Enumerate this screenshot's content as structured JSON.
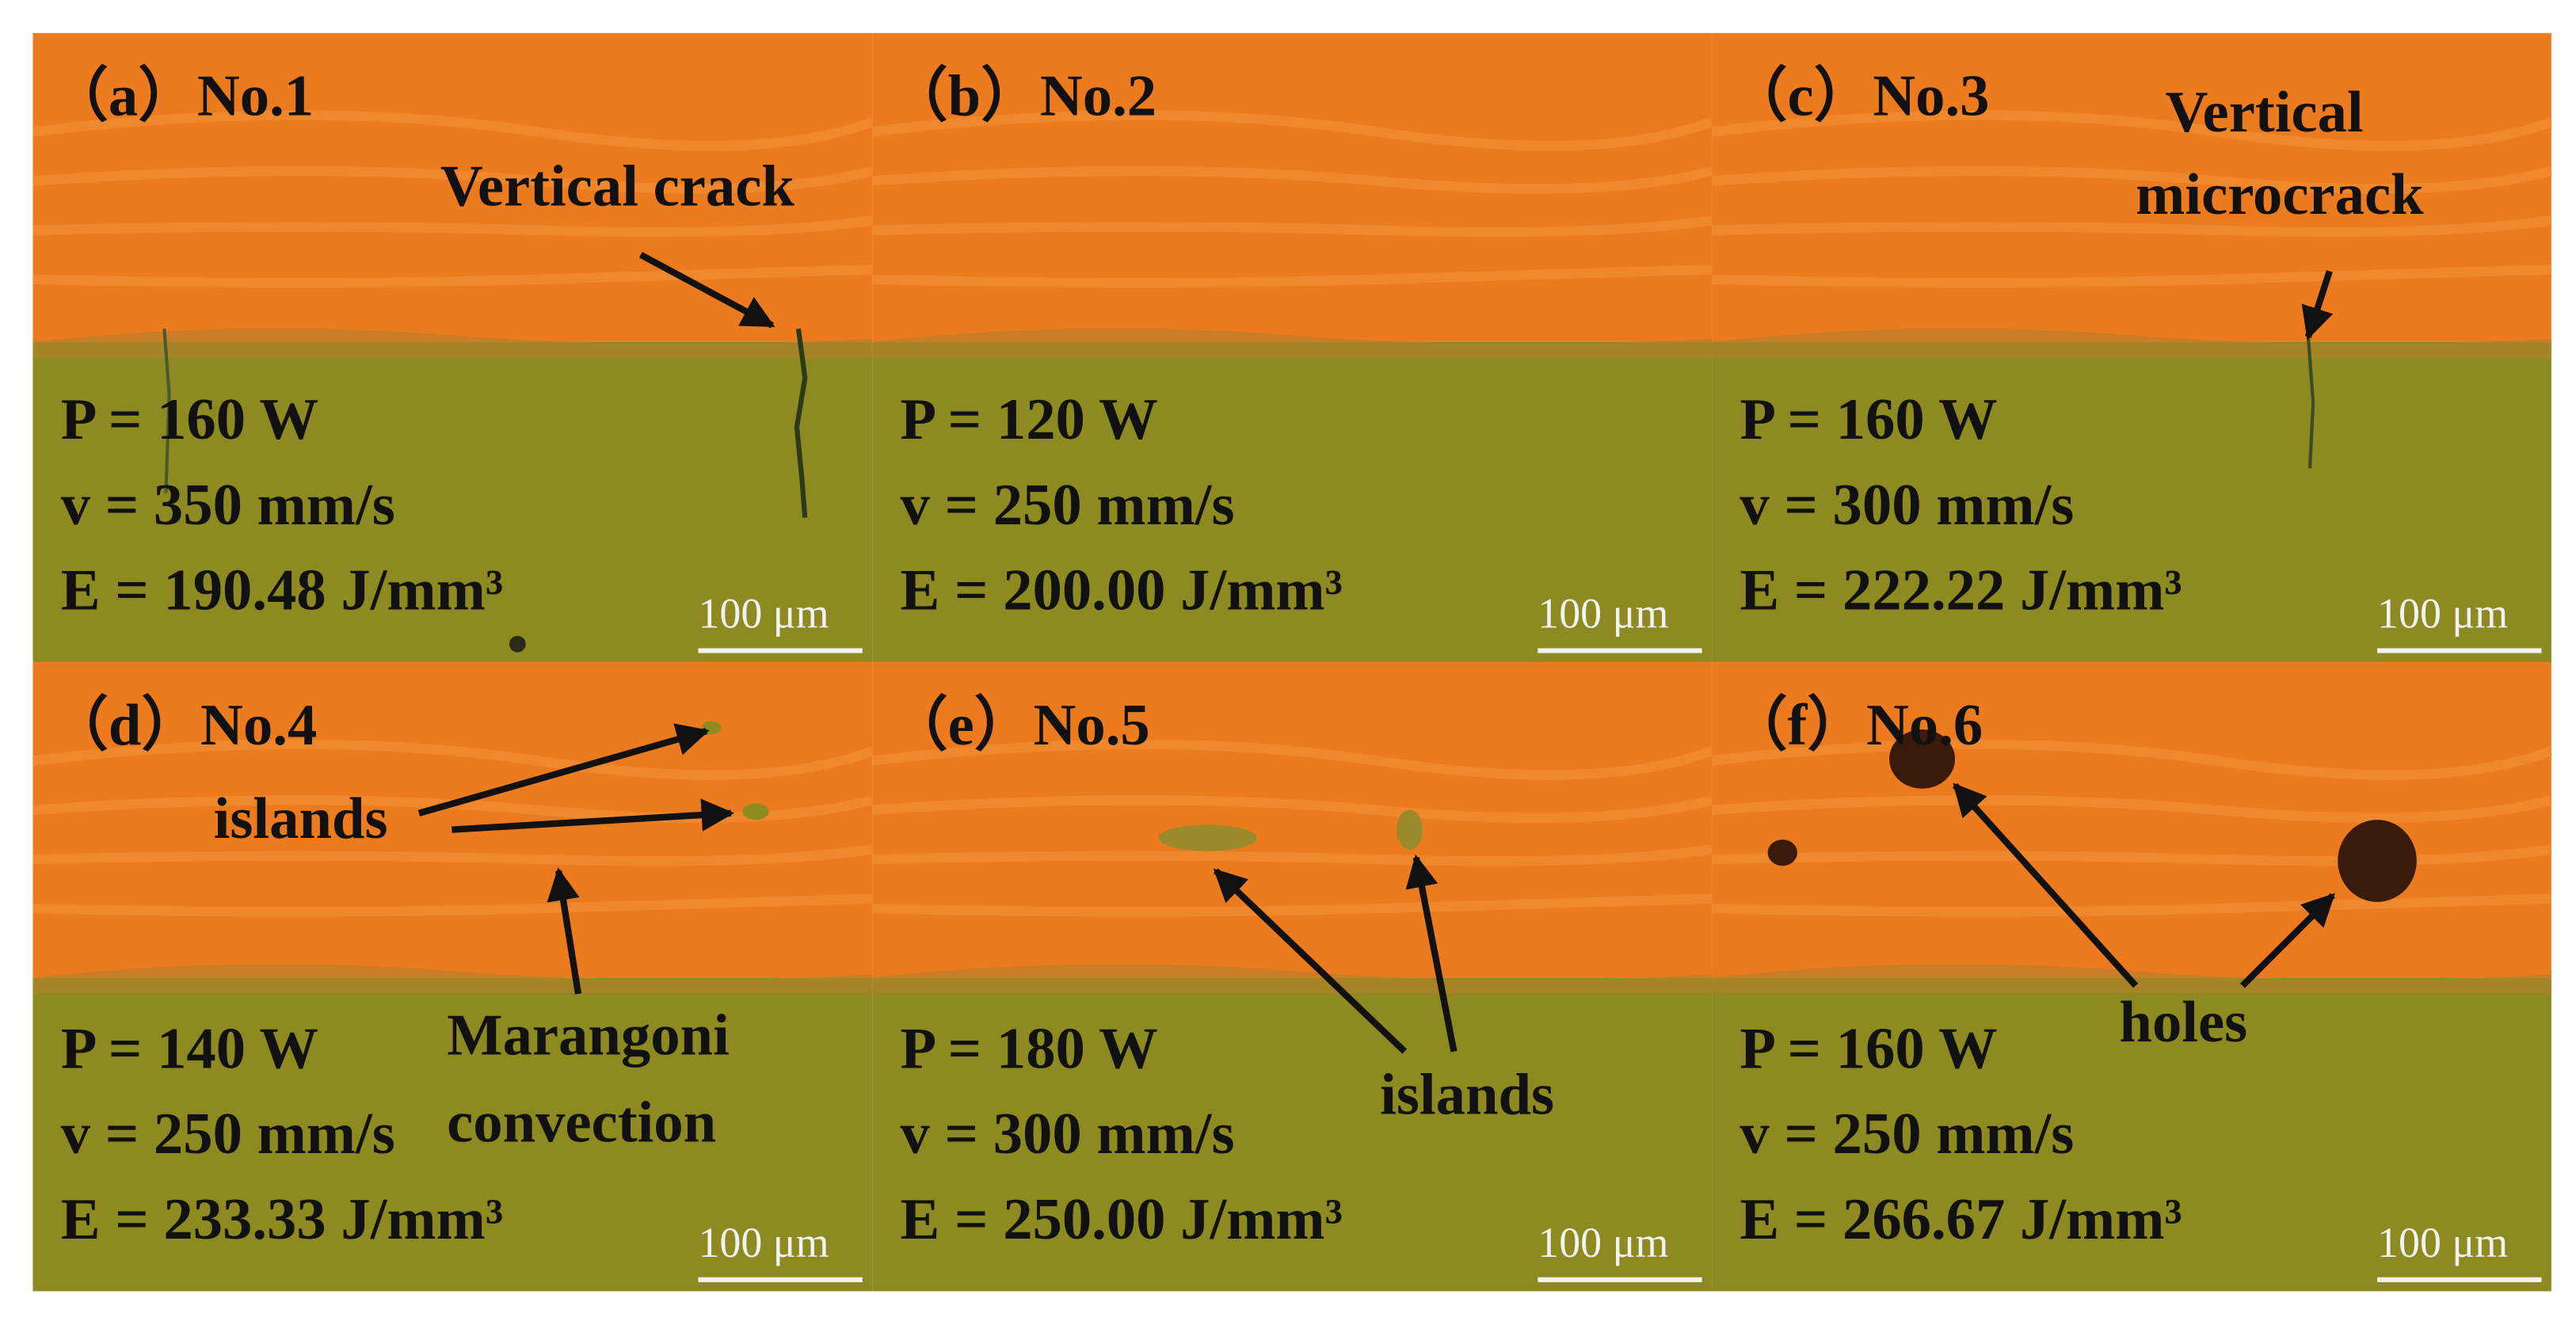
{
  "panels": [
    {
      "label": "（a）No.1",
      "params": [
        "P = 160 W",
        "v = 350 mm/s",
        "E = 190.48 J/mm³"
      ],
      "scale": "100 μm",
      "annotations": [
        "Vertical crack"
      ]
    },
    {
      "label": "（b）No.2",
      "params": [
        "P = 120 W",
        "v = 250 mm/s",
        "E = 200.00 J/mm³"
      ],
      "scale": "100 μm",
      "annotations": []
    },
    {
      "label": "（c）No.3",
      "params": [
        "P = 160 W",
        "v = 300 mm/s",
        "E = 222.22 J/mm³"
      ],
      "scale": "100 μm",
      "annotations": [
        "Vertical",
        "microcrack"
      ]
    },
    {
      "label": "（d）No.4",
      "params": [
        "P = 140 W",
        "v = 250 mm/s",
        "E = 233.33 J/mm³"
      ],
      "scale": "100 μm",
      "annotations": [
        "islands",
        "Marangoni",
        "convection"
      ]
    },
    {
      "label": "（e）No.5",
      "params": [
        "P = 180 W",
        "v = 300 mm/s",
        "E = 250.00 J/mm³"
      ],
      "scale": "100 μm",
      "annotations": [
        "islands"
      ]
    },
    {
      "label": "（f）No.6",
      "params": [
        "P = 160 W",
        "v = 250 mm/s",
        "E = 266.67 J/mm³"
      ],
      "scale": "100 μm",
      "annotations": [
        "holes"
      ]
    }
  ]
}
